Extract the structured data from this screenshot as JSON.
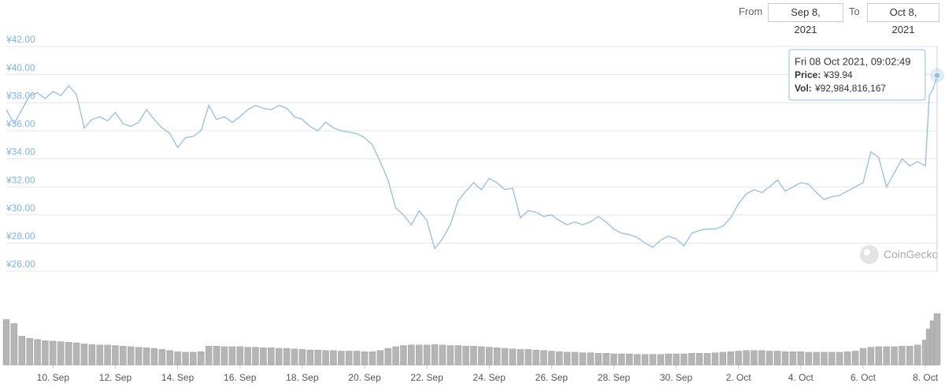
{
  "chart_data": {
    "type": "line",
    "controls": {
      "from_label": "From",
      "from": "Sep 8, 2021",
      "to_label": "To",
      "to": "Oct 8, 2021"
    },
    "x": [
      "2021-09-08T12:00",
      "2021-09-08T18:00",
      "2021-09-09T00:00",
      "2021-09-09T06:00",
      "2021-09-09T12:00",
      "2021-09-09T18:00",
      "2021-09-10T00:00",
      "2021-09-10T06:00",
      "2021-09-10T12:00",
      "2021-09-10T18:00",
      "2021-09-11T00:00",
      "2021-09-11T06:00",
      "2021-09-11T12:00",
      "2021-09-11T18:00",
      "2021-09-12T00:00",
      "2021-09-12T06:00",
      "2021-09-12T12:00",
      "2021-09-12T18:00",
      "2021-09-13T00:00",
      "2021-09-13T06:00",
      "2021-09-13T12:00",
      "2021-09-13T18:00",
      "2021-09-14T00:00",
      "2021-09-14T06:00",
      "2021-09-14T12:00",
      "2021-09-14T18:00",
      "2021-09-15T00:00",
      "2021-09-15T06:00",
      "2021-09-15T12:00",
      "2021-09-15T18:00",
      "2021-09-16T00:00",
      "2021-09-16T06:00",
      "2021-09-16T12:00",
      "2021-09-16T18:00",
      "2021-09-17T00:00",
      "2021-09-17T06:00",
      "2021-09-17T12:00",
      "2021-09-17T18:00",
      "2021-09-18T00:00",
      "2021-09-18T06:00",
      "2021-09-18T12:00",
      "2021-09-18T18:00",
      "2021-09-19T00:00",
      "2021-09-19T06:00",
      "2021-09-19T12:00",
      "2021-09-19T18:00",
      "2021-09-20T00:00",
      "2021-09-20T06:00",
      "2021-09-20T12:00",
      "2021-09-20T18:00",
      "2021-09-21T00:00",
      "2021-09-21T06:00",
      "2021-09-21T12:00",
      "2021-09-21T18:00",
      "2021-09-22T00:00",
      "2021-09-22T06:00",
      "2021-09-22T12:00",
      "2021-09-22T18:00",
      "2021-09-23T00:00",
      "2021-09-23T06:00",
      "2021-09-23T12:00",
      "2021-09-23T18:00",
      "2021-09-24T00:00",
      "2021-09-24T06:00",
      "2021-09-24T12:00",
      "2021-09-24T18:00",
      "2021-09-25T00:00",
      "2021-09-25T06:00",
      "2021-09-25T12:00",
      "2021-09-25T18:00",
      "2021-09-26T00:00",
      "2021-09-26T06:00",
      "2021-09-26T12:00",
      "2021-09-26T18:00",
      "2021-09-27T00:00",
      "2021-09-27T06:00",
      "2021-09-27T12:00",
      "2021-09-27T18:00",
      "2021-09-28T00:00",
      "2021-09-28T06:00",
      "2021-09-28T12:00",
      "2021-09-28T18:00",
      "2021-09-29T00:00",
      "2021-09-29T06:00",
      "2021-09-29T12:00",
      "2021-09-29T18:00",
      "2021-09-30T00:00",
      "2021-09-30T06:00",
      "2021-09-30T12:00",
      "2021-09-30T18:00",
      "2021-10-01T00:00",
      "2021-10-01T06:00",
      "2021-10-01T12:00",
      "2021-10-01T18:00",
      "2021-10-02T00:00",
      "2021-10-02T06:00",
      "2021-10-02T12:00",
      "2021-10-02T18:00",
      "2021-10-03T00:00",
      "2021-10-03T06:00",
      "2021-10-03T12:00",
      "2021-10-03T18:00",
      "2021-10-04T00:00",
      "2021-10-04T06:00",
      "2021-10-04T12:00",
      "2021-10-04T18:00",
      "2021-10-05T00:00",
      "2021-10-05T06:00",
      "2021-10-05T12:00",
      "2021-10-05T18:00",
      "2021-10-06T00:00",
      "2021-10-06T06:00",
      "2021-10-06T12:00",
      "2021-10-06T18:00",
      "2021-10-07T00:00",
      "2021-10-07T06:00",
      "2021-10-07T12:00",
      "2021-10-07T18:00",
      "2021-10-08T00:00",
      "2021-10-08T03:00",
      "2021-10-08T06:00",
      "2021-10-08T09:02"
    ],
    "values": [
      37.5,
      36.5,
      37.5,
      38.5,
      38.7,
      38.3,
      38.8,
      38.5,
      39.2,
      38.6,
      36.2,
      36.8,
      37.0,
      36.7,
      37.3,
      36.5,
      36.3,
      36.6,
      37.5,
      36.8,
      36.2,
      35.8,
      34.8,
      35.5,
      35.6,
      36.0,
      37.8,
      36.8,
      37.0,
      36.6,
      37.0,
      37.5,
      37.8,
      37.6,
      37.5,
      37.8,
      37.6,
      37.0,
      36.8,
      36.3,
      36.0,
      36.6,
      36.2,
      36.0,
      35.9,
      35.8,
      35.5,
      35.0,
      33.8,
      32.5,
      30.5,
      30.0,
      29.3,
      30.3,
      29.6,
      27.6,
      28.3,
      29.3,
      31.0,
      31.7,
      32.3,
      31.8,
      32.6,
      32.3,
      31.8,
      31.9,
      29.8,
      30.3,
      30.2,
      29.9,
      30.0,
      29.6,
      29.3,
      29.5,
      29.3,
      29.5,
      29.9,
      29.5,
      29.0,
      28.7,
      28.6,
      28.4,
      28.0,
      27.7,
      28.2,
      28.5,
      28.3,
      27.8,
      28.7,
      28.9,
      29.0,
      29.0,
      29.2,
      29.8,
      30.8,
      31.5,
      31.8,
      31.6,
      32.0,
      32.5,
      31.7,
      32.0,
      32.3,
      32.2,
      31.6,
      31.1,
      31.3,
      31.4,
      31.7,
      32.0,
      32.3,
      34.5,
      34.1,
      32.0,
      33.0,
      34.0,
      33.5,
      33.8,
      33.5,
      38.5,
      39.0,
      39.94
    ],
    "color": "#8fbfe9",
    "volume": [
      82000000000.0,
      75000000000.0,
      52000000000.0,
      48000000000.0,
      46000000000.0,
      44000000000.0,
      43000000000.0,
      42000000000.0,
      41000000000.0,
      40000000000.0,
      38000000000.0,
      37000000000.0,
      36000000000.0,
      36000000000.0,
      35000000000.0,
      34000000000.0,
      33000000000.0,
      32000000000.0,
      31000000000.0,
      30000000000.0,
      28000000000.0,
      26000000000.0,
      24000000000.0,
      23000000000.0,
      23000000000.0,
      24000000000.0,
      34000000000.0,
      34000000000.0,
      33000000000.0,
      33000000000.0,
      33000000000.0,
      32000000000.0,
      32000000000.0,
      31000000000.0,
      31000000000.0,
      30000000000.0,
      30000000000.0,
      29000000000.0,
      28000000000.0,
      27000000000.0,
      27000000000.0,
      26000000000.0,
      26000000000.0,
      25000000000.0,
      25000000000.0,
      25000000000.0,
      24000000000.0,
      24000000000.0,
      26000000000.0,
      30000000000.0,
      33000000000.0,
      35000000000.0,
      36000000000.0,
      36000000000.0,
      36000000000.0,
      37000000000.0,
      36000000000.0,
      35000000000.0,
      35000000000.0,
      34000000000.0,
      34000000000.0,
      33000000000.0,
      32000000000.0,
      31000000000.0,
      30000000000.0,
      29000000000.0,
      28000000000.0,
      28000000000.0,
      27000000000.0,
      26000000000.0,
      25000000000.0,
      24000000000.0,
      23000000000.0,
      23000000000.0,
      22000000000.0,
      22000000000.0,
      21000000000.0,
      21000000000.0,
      20000000000.0,
      20000000000.0,
      20000000000.0,
      19000000000.0,
      19000000000.0,
      19000000000.0,
      19000000000.0,
      20000000000.0,
      20000000000.0,
      20000000000.0,
      21000000000.0,
      21000000000.0,
      21000000000.0,
      22000000000.0,
      23000000000.0,
      24000000000.0,
      25000000000.0,
      26000000000.0,
      26000000000.0,
      26000000000.0,
      25000000000.0,
      25000000000.0,
      24000000000.0,
      24000000000.0,
      24000000000.0,
      23000000000.0,
      23000000000.0,
      23000000000.0,
      23000000000.0,
      23000000000.0,
      24000000000.0,
      25000000000.0,
      30000000000.0,
      32000000000.0,
      33000000000.0,
      33000000000.0,
      33000000000.0,
      34000000000.0,
      34000000000.0,
      36000000000.0,
      45000000000.0,
      65000000000.0,
      80000000000.0,
      92984816167
    ],
    "volume_color": "#b5b5b5",
    "xlim": [
      "2021-09-08T12:00",
      "2021-10-08T09:02"
    ],
    "ylim": [
      26,
      42
    ],
    "y2lim": [
      0,
      100000000000
    ],
    "yticks": [
      {
        "value": 26,
        "label": "¥26.00"
      },
      {
        "value": 28,
        "label": "¥28.00"
      },
      {
        "value": 30,
        "label": "¥30.00"
      },
      {
        "value": 32,
        "label": "¥32.00"
      },
      {
        "value": 34,
        "label": "¥34.00"
      },
      {
        "value": 36,
        "label": "¥36.00"
      },
      {
        "value": 38,
        "label": "¥38.00"
      },
      {
        "value": 40,
        "label": "¥40.00"
      },
      {
        "value": 42,
        "label": "¥42.00"
      }
    ],
    "xticks": [
      {
        "value": "2021-09-10T00:00",
        "label": "10. Sep"
      },
      {
        "value": "2021-09-12T00:00",
        "label": "12. Sep"
      },
      {
        "value": "2021-09-14T00:00",
        "label": "14. Sep"
      },
      {
        "value": "2021-09-16T00:00",
        "label": "16. Sep"
      },
      {
        "value": "2021-09-18T00:00",
        "label": "18. Sep"
      },
      {
        "value": "2021-09-20T00:00",
        "label": "20. Sep"
      },
      {
        "value": "2021-09-22T00:00",
        "label": "22. Sep"
      },
      {
        "value": "2021-09-24T00:00",
        "label": "24. Sep"
      },
      {
        "value": "2021-09-26T00:00",
        "label": "26. Sep"
      },
      {
        "value": "2021-09-28T00:00",
        "label": "28. Sep"
      },
      {
        "value": "2021-09-30T00:00",
        "label": "30. Sep"
      },
      {
        "value": "2021-10-02T00:00",
        "label": "2. Oct"
      },
      {
        "value": "2021-10-04T00:00",
        "label": "4. Oct"
      },
      {
        "value": "2021-10-06T00:00",
        "label": "6. Oct"
      },
      {
        "value": "2021-10-08T00:00",
        "label": "8. Oct"
      }
    ],
    "grid": true,
    "tooltip": {
      "date": "Fri 08 Oct 2021, 09:02:49",
      "price_label": "Price:",
      "price": "¥39.94",
      "vol_label": "Vol:",
      "vol": "¥92,984,816,167"
    },
    "watermark": "CoinGecko"
  }
}
